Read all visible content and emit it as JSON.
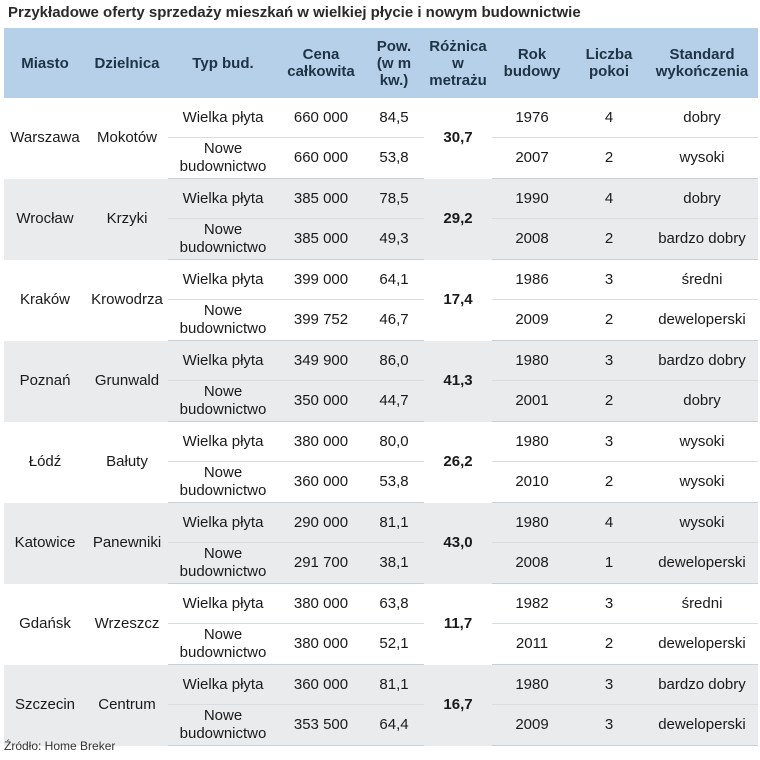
{
  "title": "Przykładowe oferty sprzedaży mieszkań w wielkiej płycie i nowym budownictwie",
  "headers": {
    "miasto": "Miasto",
    "dzielnica": "Dzielnica",
    "typ": "Typ bud.",
    "cena": [
      "Cena",
      "całkowita"
    ],
    "pow": [
      "Pow.",
      "(w m",
      "kw.)"
    ],
    "roznica": [
      "Różnica",
      "w",
      "metrażu"
    ],
    "rok": [
      "Rok",
      "budowy"
    ],
    "pokoje": [
      "Liczba",
      "pokoi"
    ],
    "standard": [
      "Standard",
      "wykończenia"
    ]
  },
  "rows": [
    {
      "miasto": "Warszawa",
      "dzielnica": "Mokotów",
      "roznica": "30,7",
      "offers": [
        {
          "typ": [
            "Wielka płyta"
          ],
          "cena": "660 000",
          "pow": "84,5",
          "rok": "1976",
          "pokoje": "4",
          "standard": "dobry"
        },
        {
          "typ": [
            "Nowe",
            "budownictwo"
          ],
          "cena": "660 000",
          "pow": "53,8",
          "rok": "2007",
          "pokoje": "2",
          "standard": "wysoki"
        }
      ]
    },
    {
      "miasto": "Wrocław",
      "dzielnica": "Krzyki",
      "roznica": "29,2",
      "offers": [
        {
          "typ": [
            "Wielka płyta"
          ],
          "cena": "385 000",
          "pow": "78,5",
          "rok": "1990",
          "pokoje": "4",
          "standard": "dobry"
        },
        {
          "typ": [
            "Nowe",
            "budownictwo"
          ],
          "cena": "385 000",
          "pow": "49,3",
          "rok": "2008",
          "pokoje": "2",
          "standard": "bardzo dobry"
        }
      ]
    },
    {
      "miasto": "Kraków",
      "dzielnica": "Krowodrza",
      "roznica": "17,4",
      "offers": [
        {
          "typ": [
            "Wielka płyta"
          ],
          "cena": "399 000",
          "pow": "64,1",
          "rok": "1986",
          "pokoje": "3",
          "standard": "średni"
        },
        {
          "typ": [
            "Nowe",
            "budownictwo"
          ],
          "cena": "399 752",
          "pow": "46,7",
          "rok": "2009",
          "pokoje": "2",
          "standard": "deweloperski"
        }
      ]
    },
    {
      "miasto": "Poznań",
      "dzielnica": "Grunwald",
      "roznica": "41,3",
      "offers": [
        {
          "typ": [
            "Wielka płyta"
          ],
          "cena": "349 900",
          "pow": "86,0",
          "rok": "1980",
          "pokoje": "3",
          "standard": "bardzo dobry"
        },
        {
          "typ": [
            "Nowe",
            "budownictwo"
          ],
          "cena": "350 000",
          "pow": "44,7",
          "rok": "2001",
          "pokoje": "2",
          "standard": "dobry"
        }
      ]
    },
    {
      "miasto": "Łódź",
      "dzielnica": "Bałuty",
      "roznica": "26,2",
      "offers": [
        {
          "typ": [
            "Wielka płyta"
          ],
          "cena": "380 000",
          "pow": "80,0",
          "rok": "1980",
          "pokoje": "3",
          "standard": "wysoki"
        },
        {
          "typ": [
            "Nowe",
            "budownictwo"
          ],
          "cena": "360 000",
          "pow": "53,8",
          "rok": "2010",
          "pokoje": "2",
          "standard": "wysoki"
        }
      ]
    },
    {
      "miasto": "Katowice",
      "dzielnica": "Panewniki",
      "roznica": "43,0",
      "offers": [
        {
          "typ": [
            "Wielka płyta"
          ],
          "cena": "290 000",
          "pow": "81,1",
          "rok": "1980",
          "pokoje": "4",
          "standard": "wysoki"
        },
        {
          "typ": [
            "Nowe",
            "budownictwo"
          ],
          "cena": "291 700",
          "pow": "38,1",
          "rok": "2008",
          "pokoje": "1",
          "standard": "deweloperski"
        }
      ]
    },
    {
      "miasto": "Gdańsk",
      "dzielnica": "Wrzeszcz",
      "roznica": "11,7",
      "offers": [
        {
          "typ": [
            "Wielka płyta"
          ],
          "cena": "380 000",
          "pow": "63,8",
          "rok": "1982",
          "pokoje": "3",
          "standard": "średni"
        },
        {
          "typ": [
            "Nowe",
            "budownictwo"
          ],
          "cena": "380 000",
          "pow": "52,1",
          "rok": "2011",
          "pokoje": "2",
          "standard": "deweloperski"
        }
      ]
    },
    {
      "miasto": "Szczecin",
      "dzielnica": "Centrum",
      "roznica": "16,7",
      "offers": [
        {
          "typ": [
            "Wielka płyta"
          ],
          "cena": "360 000",
          "pow": "81,1",
          "rok": "1980",
          "pokoje": "3",
          "standard": "bardzo dobry"
        },
        {
          "typ": [
            "Nowe",
            "budownictwo"
          ],
          "cena": "353 500",
          "pow": "64,4",
          "rok": "2009",
          "pokoje": "3",
          "standard": "deweloperski"
        }
      ]
    }
  ],
  "source": "Źródło: Home Breker",
  "colors": {
    "header_bg": "#b5d0e8",
    "shaded_row": "#e9ebec"
  }
}
